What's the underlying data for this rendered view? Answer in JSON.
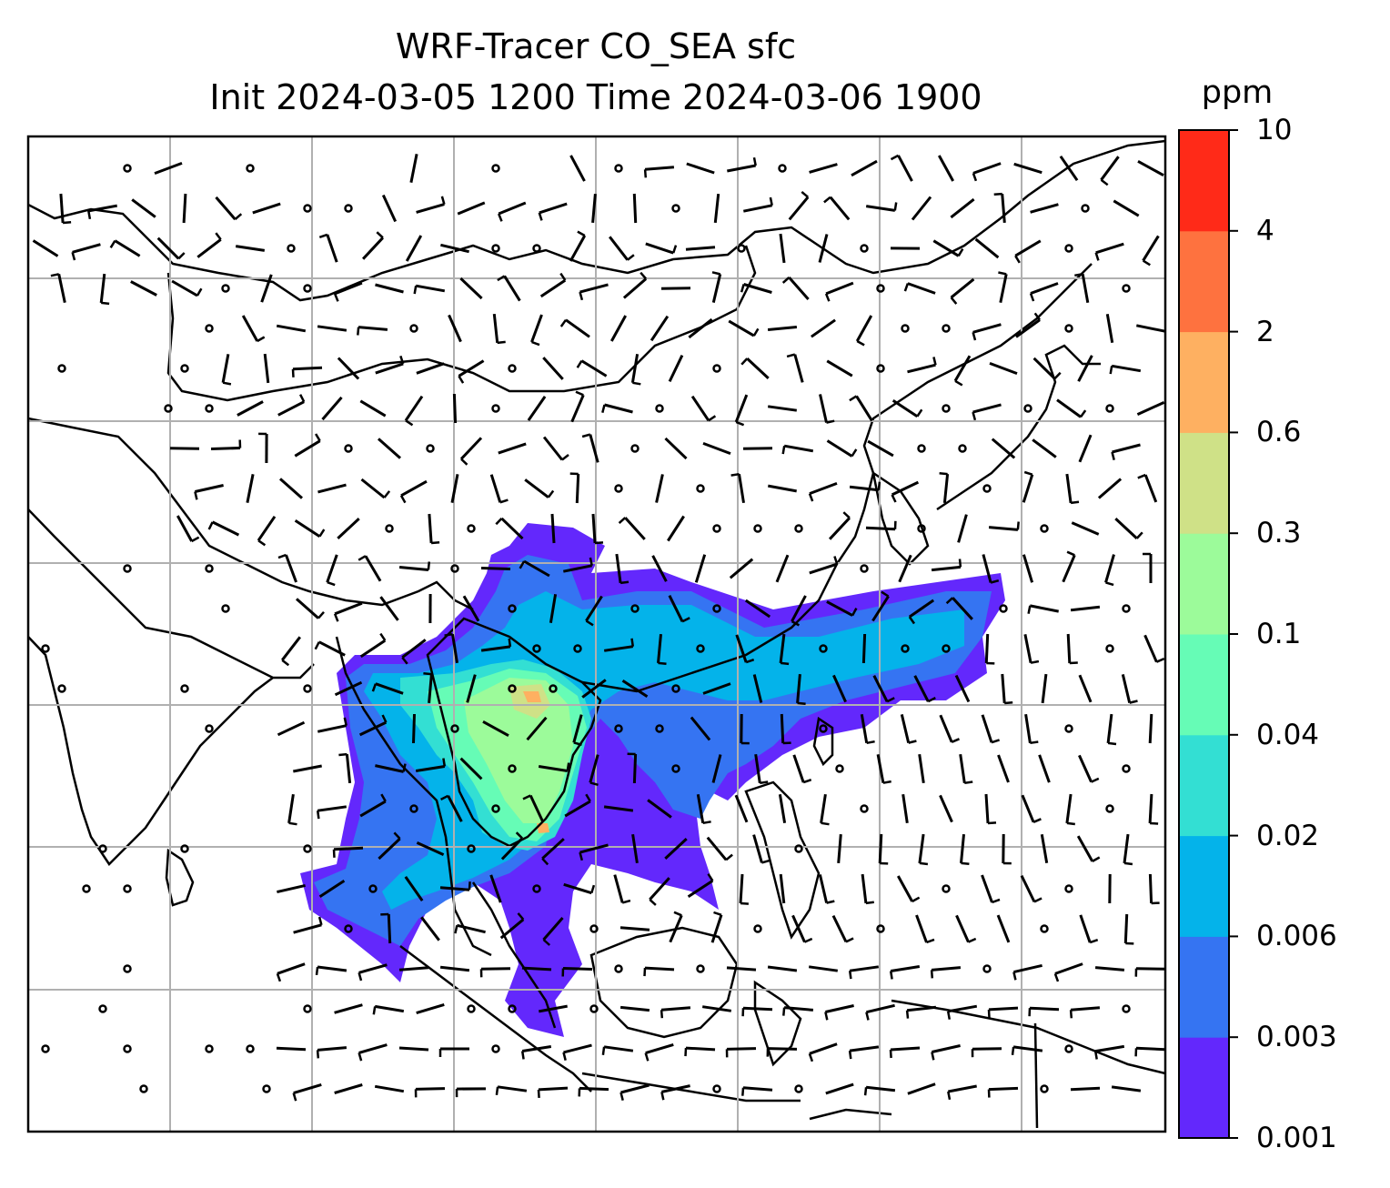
{
  "title": {
    "line1": "WRF-Tracer CO_SEA sfc",
    "line2": "Init 2024-03-05 1200 Time 2024-03-06 1900"
  },
  "colorbar": {
    "unit": "ppm",
    "ticks": [
      "0.001",
      "0.003",
      "0.006",
      "0.02",
      "0.04",
      "0.1",
      "0.3",
      "0.6",
      "2",
      "4",
      "10"
    ],
    "colors": [
      "#6328fc",
      "#3574f2",
      "#04b3ea",
      "#33dfd3",
      "#66fcb6",
      "#9cfb9a",
      "#cfe187",
      "#feb061",
      "#fe723f",
      "#ff2a18"
    ]
  },
  "map": {
    "frame_color": "#000000",
    "grid_color": "#b0b0b0",
    "coastline_color": "#000000",
    "wind_barb_color": "#000000"
  }
}
